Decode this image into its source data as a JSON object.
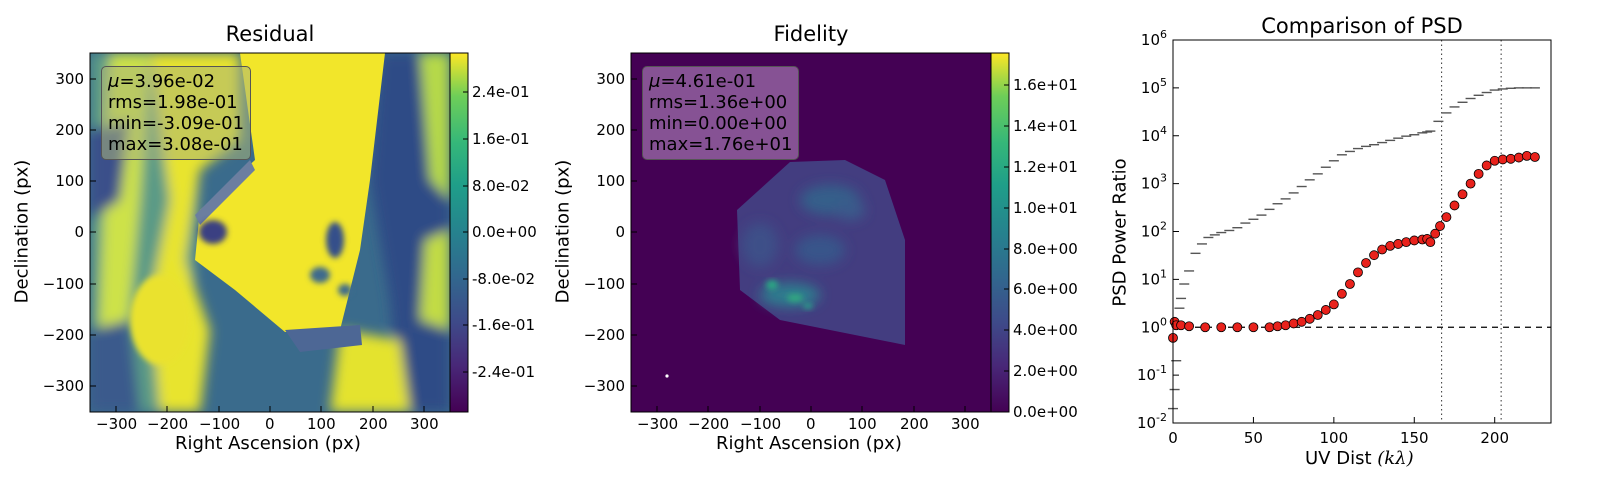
{
  "chart_data": [
    {
      "type": "heatmap",
      "title": "Residual",
      "xlabel": "Right Ascension (px)",
      "ylabel": "Declination (px)",
      "xticks": [
        "−300",
        "−200",
        "−100",
        "0",
        "100",
        "200",
        "300"
      ],
      "yticks": [
        "300",
        "200",
        "100",
        "0",
        "−100",
        "−200",
        "−300"
      ],
      "xlim": [
        -350,
        350
      ],
      "ylim": [
        -350,
        350
      ],
      "colorbar": {
        "ticks": [
          "2.4e-01",
          "1.6e-01",
          "8.0e-02",
          "0.0e+00",
          "-8.0e-02",
          "-1.6e-01",
          "-2.4e-01"
        ],
        "tick_values": [
          0.24,
          0.16,
          0.08,
          0.0,
          -0.08,
          -0.16,
          -0.24
        ],
        "range": [
          -0.309,
          0.308
        ],
        "colormap": "viridis"
      },
      "stats": {
        "mu_symbol": "μ",
        "mu": "=3.96e-02",
        "rms": "rms=1.98e-01",
        "min": "min=-3.09e-01",
        "max": "max=3.08e-01"
      }
    },
    {
      "type": "heatmap",
      "title": "Fidelity",
      "xlabel": "Right Ascension (px)",
      "ylabel": "Declination (px)",
      "xticks": [
        "−300",
        "−200",
        "−100",
        "0",
        "100",
        "200",
        "300"
      ],
      "yticks": [
        "300",
        "200",
        "100",
        "0",
        "−100",
        "−200",
        "−300"
      ],
      "xlim": [
        -350,
        350
      ],
      "ylim": [
        -350,
        350
      ],
      "colorbar": {
        "ticks": [
          "1.6e+01",
          "1.4e+01",
          "1.2e+01",
          "1.0e+01",
          "8.0e+00",
          "6.0e+00",
          "4.0e+00",
          "2.0e+00",
          "0.0e+00"
        ],
        "tick_values": [
          16,
          14,
          12,
          10,
          8,
          6,
          4,
          2,
          0
        ],
        "range": [
          0,
          17.6
        ],
        "colormap": "viridis"
      },
      "stats": {
        "mu_symbol": "μ",
        "mu": "=4.61e-01",
        "rms": "rms=1.36e+00",
        "min": "min=0.00e+00",
        "max": "max=1.76e+01"
      }
    },
    {
      "type": "scatter",
      "title": "Comparison of PSD",
      "xlabel_text": "UV Dist ",
      "xlabel_math": "(kλ)",
      "ylabel": "PSD Power Ratio",
      "xlim": [
        0,
        235
      ],
      "ylim": [
        0.01,
        1000000
      ],
      "yscale": "log",
      "xticks": [
        "0",
        "50",
        "100",
        "150",
        "200"
      ],
      "xtick_values": [
        0,
        50,
        100,
        150,
        200
      ],
      "ytick_exponents": [
        "-2",
        "-1",
        "0",
        "1",
        "2",
        "3",
        "4",
        "5",
        "6"
      ],
      "hline": 1,
      "vlines": [
        167,
        204
      ],
      "series": [
        {
          "marker": "horizontal-dash",
          "color": "#555555",
          "x": [
            0,
            1,
            2,
            3,
            4,
            5,
            7,
            10,
            14,
            18,
            22,
            26,
            30,
            35,
            40,
            45,
            50,
            55,
            60,
            65,
            70,
            75,
            80,
            85,
            90,
            95,
            100,
            105,
            110,
            115,
            120,
            125,
            130,
            135,
            140,
            145,
            150,
            155,
            158,
            160,
            165,
            170,
            175,
            180,
            185,
            190,
            195,
            200,
            205,
            210,
            215,
            220,
            225
          ],
          "y": [
            0.02,
            0.05,
            0.2,
            1,
            2.5,
            4,
            8,
            15,
            35,
            55,
            75,
            85,
            95,
            105,
            120,
            150,
            180,
            220,
            290,
            380,
            480,
            640,
            870,
            1200,
            1600,
            2200,
            3000,
            4000,
            4700,
            5400,
            6000,
            6500,
            7200,
            8000,
            8900,
            9800,
            10500,
            11500,
            12000,
            12500,
            20000,
            30000,
            40000,
            50000,
            60000,
            70000,
            80000,
            90000,
            95000,
            98000,
            100000,
            100000,
            100000
          ]
        },
        {
          "marker": "circle",
          "color": "#e8221c",
          "x": [
            0,
            1,
            2,
            5,
            10,
            20,
            30,
            40,
            50,
            60,
            65,
            70,
            75,
            80,
            85,
            90,
            95,
            100,
            105,
            110,
            115,
            120,
            125,
            130,
            135,
            140,
            145,
            150,
            155,
            158,
            160,
            163,
            166,
            170,
            175,
            180,
            185,
            190,
            195,
            200,
            205,
            210,
            215,
            220,
            225
          ],
          "y": [
            0.6,
            1.3,
            1.1,
            1.1,
            1.05,
            1.0,
            1.0,
            1.0,
            1.0,
            1.0,
            1.05,
            1.1,
            1.2,
            1.3,
            1.5,
            1.8,
            2.3,
            3.0,
            5.0,
            8.0,
            14,
            22,
            32,
            42,
            50,
            55,
            60,
            65,
            68,
            70,
            60,
            90,
            130,
            200,
            350,
            600,
            1000,
            1600,
            2400,
            3000,
            3200,
            3300,
            3500,
            3800,
            3600
          ]
        }
      ]
    }
  ]
}
